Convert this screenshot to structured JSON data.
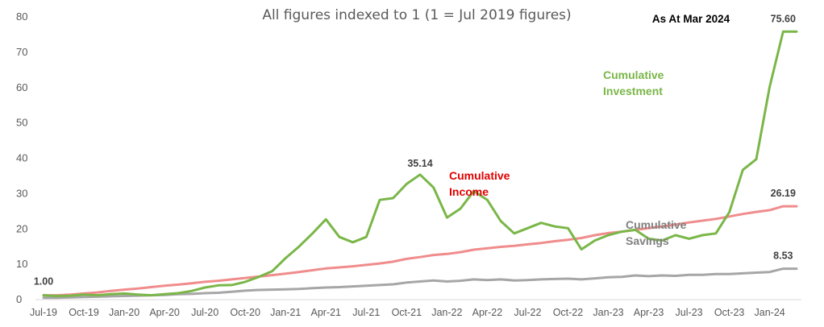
{
  "chart_data": {
    "type": "line",
    "title": "All figures indexed to 1 (1 = Jul 2019 figures)",
    "subtitle": "As At Mar 2024",
    "ylim": [
      0,
      80
    ],
    "yticks": [
      0,
      10,
      20,
      30,
      40,
      50,
      60,
      70,
      80
    ],
    "grid": false,
    "x": [
      "Jul-19",
      "Aug-19",
      "Sep-19",
      "Oct-19",
      "Nov-19",
      "Dec-19",
      "Jan-20",
      "Feb-20",
      "Mar-20",
      "Apr-20",
      "May-20",
      "Jun-20",
      "Jul-20",
      "Aug-20",
      "Sep-20",
      "Oct-20",
      "Nov-20",
      "Dec-20",
      "Jan-21",
      "Feb-21",
      "Mar-21",
      "Apr-21",
      "May-21",
      "Jun-21",
      "Jul-21",
      "Aug-21",
      "Sep-21",
      "Oct-21",
      "Nov-21",
      "Dec-21",
      "Jan-22",
      "Feb-22",
      "Mar-22",
      "Apr-22",
      "May-22",
      "Jun-22",
      "Jul-22",
      "Aug-22",
      "Sep-22",
      "Oct-22",
      "Nov-22",
      "Dec-22",
      "Jan-23",
      "Feb-23",
      "Mar-23",
      "Apr-23",
      "May-23",
      "Jun-23",
      "Jul-23",
      "Aug-23",
      "Sep-23",
      "Oct-23",
      "Nov-23",
      "Dec-23",
      "Jan-24",
      "Feb-24",
      "Mar-24"
    ],
    "xtick_labels": [
      "Jul-19",
      "Oct-19",
      "Jan-20",
      "Apr-20",
      "Jul-20",
      "Oct-20",
      "Jan-21",
      "Apr-21",
      "Jul-21",
      "Oct-21",
      "Jan-22",
      "Apr-22",
      "Jul-22",
      "Oct-22",
      "Jan-23",
      "Apr-23",
      "Jul-23",
      "Oct-23",
      "Jan-24"
    ],
    "series": [
      {
        "name": "Cumulative Investment",
        "color": "#7AB648",
        "label_pos": "mid-right",
        "values": [
          1.0,
          0.8,
          0.9,
          1.2,
          1.0,
          1.3,
          1.5,
          1.2,
          1.0,
          1.3,
          1.6,
          2.2,
          3.2,
          3.8,
          3.9,
          4.8,
          6.2,
          7.8,
          11.5,
          14.8,
          18.5,
          22.5,
          17.5,
          16.0,
          17.5,
          28.0,
          28.5,
          32.5,
          35.14,
          31.5,
          23.0,
          25.5,
          30.5,
          28.0,
          22.0,
          18.5,
          20.0,
          21.5,
          20.5,
          20.0,
          14.0,
          16.5,
          18.0,
          19.0,
          19.5,
          17.0,
          16.5,
          18.0,
          17.0,
          18.0,
          18.5,
          24.5,
          36.5,
          39.5,
          60.0,
          75.6,
          75.6
        ]
      },
      {
        "name": "Cumulative Income",
        "color": "#F08C8C",
        "label_pos": "middle",
        "values": [
          1.0,
          1.0,
          1.2,
          1.5,
          1.8,
          2.2,
          2.6,
          2.9,
          3.3,
          3.7,
          4.0,
          4.4,
          4.8,
          5.1,
          5.5,
          5.9,
          6.3,
          6.7,
          7.1,
          7.6,
          8.1,
          8.6,
          8.9,
          9.2,
          9.6,
          10.0,
          10.5,
          11.3,
          11.8,
          12.4,
          12.7,
          13.2,
          13.9,
          14.3,
          14.7,
          15.0,
          15.4,
          15.8,
          16.3,
          16.7,
          17.2,
          18.0,
          18.6,
          19.0,
          19.5,
          20.0,
          20.5,
          21.0,
          21.6,
          22.1,
          22.6,
          23.3,
          24.0,
          24.6,
          25.1,
          26.19,
          26.19
        ]
      },
      {
        "name": "Cumulative Savings",
        "color": "#A6A6A6",
        "label_pos": "lower-right",
        "values": [
          0.3,
          0.3,
          0.4,
          0.5,
          0.6,
          0.7,
          0.8,
          0.9,
          1.0,
          1.1,
          1.3,
          1.4,
          1.6,
          1.7,
          2.0,
          2.3,
          2.5,
          2.6,
          2.7,
          2.8,
          3.0,
          3.2,
          3.3,
          3.5,
          3.7,
          3.9,
          4.1,
          4.6,
          4.9,
          5.2,
          4.9,
          5.1,
          5.5,
          5.3,
          5.5,
          5.2,
          5.3,
          5.5,
          5.6,
          5.7,
          5.5,
          5.8,
          6.1,
          6.2,
          6.6,
          6.4,
          6.6,
          6.5,
          6.8,
          6.8,
          7.0,
          7.0,
          7.2,
          7.4,
          7.6,
          8.53,
          8.53
        ]
      }
    ],
    "series_labels": [
      {
        "lines": [
          "Cumulative",
          "Investment"
        ],
        "color": "#7AB648"
      },
      {
        "lines": [
          "Cumulative",
          "Income"
        ],
        "color": "#E00000"
      },
      {
        "lines": [
          "Cumulative",
          "Savings"
        ],
        "color": "#808080"
      }
    ],
    "data_labels": [
      {
        "text": "1.00",
        "x": "Jul-19",
        "value": 1.0
      },
      {
        "text": "35.14",
        "x": "Nov-21",
        "value": 35.14
      },
      {
        "text": "75.60",
        "x": "Feb-24",
        "value": 75.6
      },
      {
        "text": "26.19",
        "x": "Feb-24",
        "value": 26.19
      },
      {
        "text": "8.53",
        "x": "Feb-24",
        "value": 8.53
      }
    ]
  }
}
